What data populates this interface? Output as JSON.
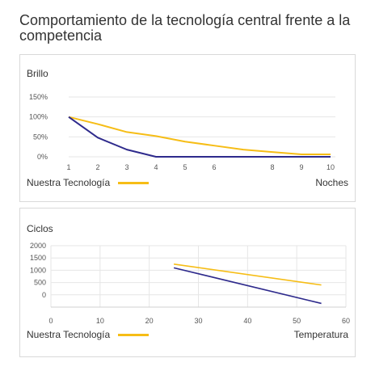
{
  "page": {
    "title": "Comportamiento de la tecnología central frente a la competencia"
  },
  "colors": {
    "ours": "#F6BD16",
    "competition": "#2E2A8C",
    "grid": "#e6e6e6"
  },
  "chart_data": [
    {
      "type": "line",
      "title": "Brillo",
      "xlabel": "Noches",
      "ylabel": "",
      "x_ticks": [
        1,
        2,
        3,
        4,
        5,
        6,
        8,
        9,
        10
      ],
      "y_ticks": [
        "150%",
        "100%",
        "50%",
        "0%"
      ],
      "ylim": [
        0,
        150
      ],
      "series": [
        {
          "name": "Nuestra Tecnología",
          "color": "#F6BD16",
          "x": [
            1,
            2,
            3,
            4,
            5,
            6,
            7,
            8,
            9,
            10
          ],
          "y": [
            100,
            82,
            62,
            52,
            38,
            28,
            18,
            12,
            6,
            6
          ]
        },
        {
          "color": "#2E2A8C",
          "x": [
            1,
            2,
            3,
            4,
            5,
            6,
            7,
            8,
            9,
            10
          ],
          "y": [
            100,
            48,
            18,
            0,
            0,
            0,
            0,
            0,
            0,
            0
          ]
        }
      ],
      "legend": "bottom-left"
    },
    {
      "type": "line",
      "title": "Ciclos",
      "xlabel": "Temperatura",
      "ylabel": "",
      "x_ticks": [
        0,
        10,
        20,
        30,
        40,
        50,
        60
      ],
      "y_ticks": [
        "2000",
        "1500",
        "1000",
        "500",
        "0"
      ],
      "xlim": [
        0,
        60
      ],
      "ylim": [
        -500,
        2000
      ],
      "series": [
        {
          "name": "Nuestra Tecnología",
          "color": "#F6BD16",
          "x": [
            25,
            55
          ],
          "y": [
            1250,
            400
          ]
        },
        {
          "color": "#2E2A8C",
          "x": [
            25,
            55
          ],
          "y": [
            1100,
            -350
          ]
        }
      ],
      "legend": "bottom-left"
    }
  ]
}
